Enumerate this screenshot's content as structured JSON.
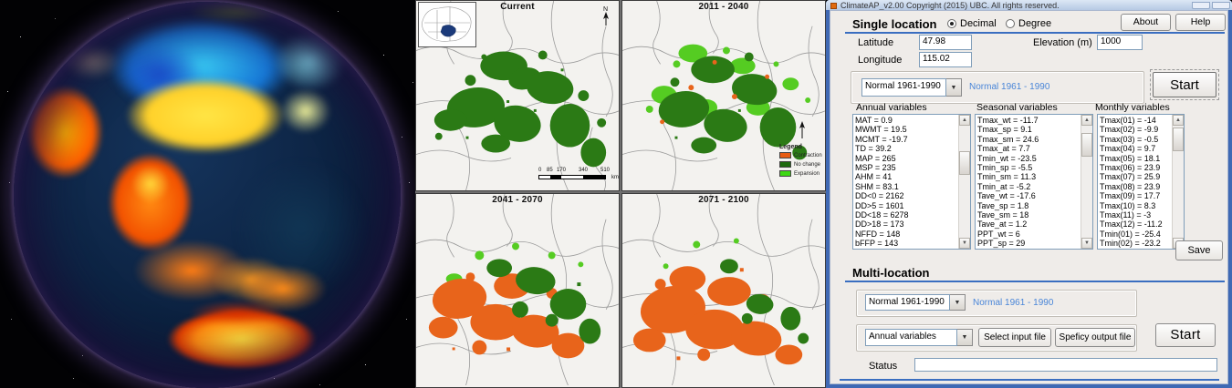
{
  "titlebar": {
    "title": "ClimateAP_v2.00  Copyright (2015) UBC. All rights reserved."
  },
  "single_location": {
    "header": "Single location",
    "radio_decimal": "Decimal",
    "radio_degree": "Degree",
    "about_label": "About",
    "help_label": "Help",
    "latitude_label": "Latitude",
    "latitude_value": "47.98",
    "longitude_label": "Longitude",
    "longitude_value": "115.02",
    "elevation_label": "Elevation (m)",
    "elevation_value": "1000",
    "period_select": "Normal 1961-1990",
    "period_note": "Normal 1961 - 1990",
    "start_label": "Start",
    "save_label": "Save",
    "lists": {
      "annual": {
        "header": "Annual variables",
        "items": [
          "MAT = 0.9",
          "MWMT = 19.5",
          "MCMT = -19.7",
          "TD = 39.2",
          "MAP = 265",
          "MSP = 235",
          "AHM = 41",
          "SHM = 83.1",
          "DD<0 = 2162",
          "DD>5 = 1601",
          "DD<18 = 6278",
          "DD>18 = 173",
          "NFFD = 148",
          "bFFP = 143"
        ]
      },
      "seasonal": {
        "header": "Seasonal variables",
        "items": [
          "Tmax_wt = -11.7",
          "Tmax_sp = 9.1",
          "Tmax_sm = 24.6",
          "Tmax_at = 7.7",
          "Tmin_wt = -23.5",
          "Tmin_sp = -5.5",
          "Tmin_sm = 11.3",
          "Tmin_at = -5.2",
          "Tave_wt = -17.6",
          "Tave_sp = 1.8",
          "Tave_sm = 18",
          "Tave_at = 1.2",
          "PPT_wt = 6",
          "PPT_sp = 29"
        ]
      },
      "monthly": {
        "header": "Monthly variables",
        "items": [
          "Tmax(01) = -14",
          "Tmax(02) = -9.9",
          "Tmax(03) = -0.5",
          "Tmax(04) = 9.7",
          "Tmax(05) = 18.1",
          "Tmax(06) = 23.9",
          "Tmax(07) = 25.9",
          "Tmax(08) = 23.9",
          "Tmax(09) = 17.7",
          "Tmax(10) = 8.3",
          "Tmax(11) = -3",
          "Tmax(12) = -11.2",
          "Tmin(01) = -25.4",
          "Tmin(02) = -23.2"
        ]
      }
    }
  },
  "multi_location": {
    "header": "Multi-location",
    "period_select": "Normal 1961-1990",
    "period_note": "Normal 1961 - 1990",
    "variables_select": "Annual variables",
    "select_input_label": "Select input file",
    "specify_output_label": "Speficy output file",
    "start_label": "Start",
    "status_label": "Status",
    "status_value": ""
  },
  "maps": {
    "panels": [
      {
        "title": "Current"
      },
      {
        "title": "2011 - 2040"
      },
      {
        "title": "2041 - 2070"
      },
      {
        "title": "2071 - 2100"
      }
    ],
    "legend": {
      "title": "Legend",
      "items": [
        {
          "label": "Contraction",
          "color": "#E85C12"
        },
        {
          "label": "No change",
          "color": "#1F6B0F"
        },
        {
          "label": "Expansion",
          "color": "#3ED813"
        }
      ]
    },
    "scalebar": {
      "ticks": [
        "0",
        "85",
        "170",
        "340",
        "510"
      ],
      "unit": "km"
    }
  },
  "colors": {
    "accent_blue": "#3A6EC0",
    "note_blue": "#4A86D8",
    "map_dark_green": "#2B7A15",
    "map_light_green": "#55CC22",
    "map_orange": "#E8641B"
  }
}
